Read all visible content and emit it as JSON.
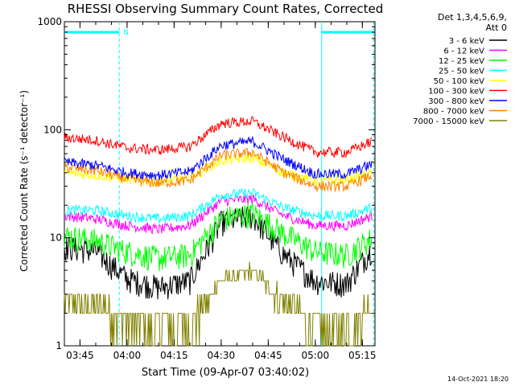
{
  "chart_data": {
    "type": "line",
    "title": "RHESSI Observing Summary Count Rates, Corrected",
    "xlabel": "Start Time (09-Apr-07 03:40:02)",
    "ylabel": "Corrected Count Rate (s⁻¹ detector⁻¹)",
    "y_scale": "log",
    "ylim": [
      1,
      1000
    ],
    "xlim_minutes": [
      0,
      99
    ],
    "y_ticks": [
      {
        "value": 1,
        "label": "1"
      },
      {
        "value": 10,
        "label": "10"
      },
      {
        "value": 100,
        "label": "100"
      },
      {
        "value": 1000,
        "label": "1000"
      }
    ],
    "x_ticks": [
      {
        "value": 4.97,
        "label": "03:45"
      },
      {
        "value": 19.97,
        "label": "04:00"
      },
      {
        "value": 34.97,
        "label": "04:15"
      },
      {
        "value": 49.97,
        "label": "04:30"
      },
      {
        "value": 64.97,
        "label": "04:45"
      },
      {
        "value": 79.97,
        "label": "05:00"
      },
      {
        "value": 94.97,
        "label": "05:15"
      }
    ],
    "legend_title": [
      "Det 1,3,4,5,6,9,",
      "Att 0"
    ],
    "legend_position": "right",
    "timestamp": "14-Oct-2021 18:20",
    "flag_bars": [
      {
        "label": "N",
        "start_min": 0,
        "end_min": 17.5,
        "color": "#00ffff",
        "value": 800
      },
      {
        "label": "",
        "start_min": 82,
        "end_min": 98.6,
        "color": "#00ffff",
        "value": 800
      }
    ],
    "vertical_markers": [
      {
        "x_min": 17.5,
        "style": "dashed",
        "color": "#00ffff"
      },
      {
        "x_min": 82,
        "style": "solid",
        "color": "#00ffff"
      },
      {
        "x_min": 98.6,
        "style": "dashed",
        "color": "#00ffff"
      }
    ],
    "series": [
      {
        "name": "3 - 6 keV",
        "color": "#000000",
        "points": [
          [
            0,
            8.3
          ],
          [
            10,
            7.5
          ],
          [
            20,
            4.2
          ],
          [
            30,
            3.5
          ],
          [
            40,
            4.0
          ],
          [
            50,
            14
          ],
          [
            60,
            16
          ],
          [
            70,
            7
          ],
          [
            80,
            4
          ],
          [
            90,
            3.8
          ],
          [
            98,
            8
          ]
        ]
      },
      {
        "name": "6 - 12 keV",
        "color": "#ff00ff",
        "points": [
          [
            0,
            16
          ],
          [
            10,
            15
          ],
          [
            20,
            13
          ],
          [
            30,
            12
          ],
          [
            40,
            13
          ],
          [
            50,
            22
          ],
          [
            60,
            23
          ],
          [
            70,
            16
          ],
          [
            80,
            13
          ],
          [
            90,
            13
          ],
          [
            98,
            16
          ]
        ]
      },
      {
        "name": "12 - 25 keV",
        "color": "#00ff00",
        "points": [
          [
            0,
            10.5
          ],
          [
            10,
            9.5
          ],
          [
            20,
            7.5
          ],
          [
            30,
            6.5
          ],
          [
            40,
            7
          ],
          [
            50,
            15
          ],
          [
            60,
            17
          ],
          [
            70,
            11
          ],
          [
            80,
            7.5
          ],
          [
            90,
            7
          ],
          [
            98,
            10
          ]
        ]
      },
      {
        "name": "25 - 50 keV",
        "color": "#00ffff",
        "points": [
          [
            0,
            18
          ],
          [
            10,
            18
          ],
          [
            20,
            16
          ],
          [
            30,
            15
          ],
          [
            40,
            16
          ],
          [
            50,
            25
          ],
          [
            60,
            26
          ],
          [
            70,
            19
          ],
          [
            80,
            16
          ],
          [
            90,
            16
          ],
          [
            98,
            19
          ]
        ]
      },
      {
        "name": "50 - 100 keV",
        "color": "#ffff00",
        "points": [
          [
            0,
            40
          ],
          [
            10,
            38
          ],
          [
            20,
            35
          ],
          [
            30,
            33
          ],
          [
            40,
            36
          ],
          [
            50,
            52
          ],
          [
            60,
            55
          ],
          [
            70,
            40
          ],
          [
            80,
            34
          ],
          [
            90,
            34
          ],
          [
            98,
            40
          ]
        ]
      },
      {
        "name": "100 - 300 keV",
        "color": "#ff0000",
        "points": [
          [
            0,
            85
          ],
          [
            10,
            80
          ],
          [
            20,
            68
          ],
          [
            30,
            65
          ],
          [
            40,
            70
          ],
          [
            50,
            115
          ],
          [
            60,
            120
          ],
          [
            70,
            85
          ],
          [
            80,
            62
          ],
          [
            90,
            62
          ],
          [
            98,
            78
          ]
        ]
      },
      {
        "name": "300 - 800 keV",
        "color": "#0000ff",
        "points": [
          [
            0,
            50
          ],
          [
            10,
            47
          ],
          [
            20,
            40
          ],
          [
            30,
            38
          ],
          [
            40,
            41
          ],
          [
            50,
            72
          ],
          [
            60,
            78
          ],
          [
            70,
            53
          ],
          [
            80,
            39
          ],
          [
            90,
            39
          ],
          [
            98,
            48
          ]
        ]
      },
      {
        "name": "800 - 7000 keV",
        "color": "#ff8000",
        "points": [
          [
            0,
            45
          ],
          [
            10,
            42
          ],
          [
            20,
            35
          ],
          [
            30,
            32
          ],
          [
            40,
            34
          ],
          [
            50,
            58
          ],
          [
            60,
            62
          ],
          [
            70,
            40
          ],
          [
            80,
            30
          ],
          [
            90,
            30
          ],
          [
            98,
            38
          ]
        ]
      },
      {
        "name": "7000 - 15000 keV",
        "color": "#808000",
        "points": [
          [
            0,
            2.5
          ],
          [
            10,
            2.5
          ],
          [
            20,
            1.7
          ],
          [
            30,
            1.5
          ],
          [
            40,
            1.6
          ],
          [
            50,
            4
          ],
          [
            60,
            5
          ],
          [
            70,
            2.6
          ],
          [
            80,
            1.5
          ],
          [
            90,
            1.4
          ],
          [
            98,
            2.5
          ]
        ]
      }
    ]
  }
}
